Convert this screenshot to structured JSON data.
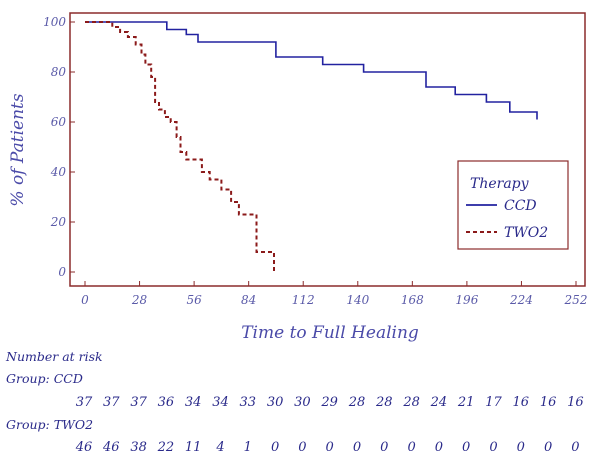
{
  "chart_data": {
    "type": "line",
    "step": true,
    "xlabel": "Time to Full Healing",
    "ylabel": "% of Patients",
    "xlim": [
      0,
      252
    ],
    "ylim": [
      0,
      100
    ],
    "x_ticks": [
      "0",
      "28",
      "56",
      "84",
      "112",
      "140",
      "168",
      "196",
      "224",
      "252"
    ],
    "y_ticks": [
      "0",
      "20",
      "40",
      "60",
      "80",
      "100"
    ],
    "legend": {
      "title": "Therapy",
      "placement": "right"
    },
    "colors": {
      "CCD": "#2222a0",
      "TWO2": "#8b1a1a",
      "frame": "#8b2b2b"
    },
    "series": [
      {
        "name": "CCD",
        "style": "solid",
        "points": [
          [
            0,
            100
          ],
          [
            42,
            100
          ],
          [
            42,
            97
          ],
          [
            52,
            97
          ],
          [
            52,
            95
          ],
          [
            58,
            95
          ],
          [
            58,
            92
          ],
          [
            98,
            92
          ],
          [
            98,
            86
          ],
          [
            122,
            86
          ],
          [
            122,
            83
          ],
          [
            143,
            83
          ],
          [
            143,
            80
          ],
          [
            175,
            80
          ],
          [
            175,
            74
          ],
          [
            190,
            74
          ],
          [
            190,
            71
          ],
          [
            206,
            71
          ],
          [
            206,
            68
          ],
          [
            218,
            68
          ],
          [
            218,
            64
          ],
          [
            232,
            64
          ],
          [
            232,
            61
          ]
        ]
      },
      {
        "name": "TWO2",
        "style": "dashed",
        "points": [
          [
            0,
            100
          ],
          [
            14,
            100
          ],
          [
            14,
            98
          ],
          [
            18,
            98
          ],
          [
            18,
            96
          ],
          [
            22,
            96
          ],
          [
            22,
            94
          ],
          [
            26,
            94
          ],
          [
            26,
            91
          ],
          [
            29,
            91
          ],
          [
            29,
            87
          ],
          [
            31,
            87
          ],
          [
            31,
            83
          ],
          [
            34,
            83
          ],
          [
            34,
            78
          ],
          [
            36,
            78
          ],
          [
            36,
            68
          ],
          [
            38,
            68
          ],
          [
            38,
            65
          ],
          [
            41,
            65
          ],
          [
            41,
            62
          ],
          [
            44,
            62
          ],
          [
            44,
            60
          ],
          [
            47,
            60
          ],
          [
            47,
            54
          ],
          [
            49,
            54
          ],
          [
            49,
            48
          ],
          [
            52,
            48
          ],
          [
            52,
            45
          ],
          [
            60,
            45
          ],
          [
            60,
            40
          ],
          [
            64,
            40
          ],
          [
            64,
            37
          ],
          [
            70,
            37
          ],
          [
            70,
            33
          ],
          [
            75,
            33
          ],
          [
            75,
            28
          ],
          [
            79,
            28
          ],
          [
            79,
            23
          ],
          [
            88,
            23
          ],
          [
            88,
            8
          ],
          [
            97,
            8
          ],
          [
            97,
            0
          ],
          [
            98,
            0
          ]
        ]
      }
    ]
  },
  "number_at_risk": {
    "title": "Number at risk",
    "groups": [
      {
        "label": "Group: CCD",
        "values": [
          "37",
          "37",
          "37",
          "36",
          "34",
          "34",
          "33",
          "30",
          "30",
          "29",
          "28",
          "28",
          "28",
          "24",
          "21",
          "17",
          "16",
          "16",
          "16"
        ]
      },
      {
        "label": "Group: TWO2",
        "values": [
          "46",
          "46",
          "38",
          "22",
          "11",
          "4",
          "1",
          "0",
          "0",
          "0",
          "0",
          "0",
          "0",
          "0",
          "0",
          "0",
          "0",
          "0",
          "0"
        ]
      }
    ]
  }
}
